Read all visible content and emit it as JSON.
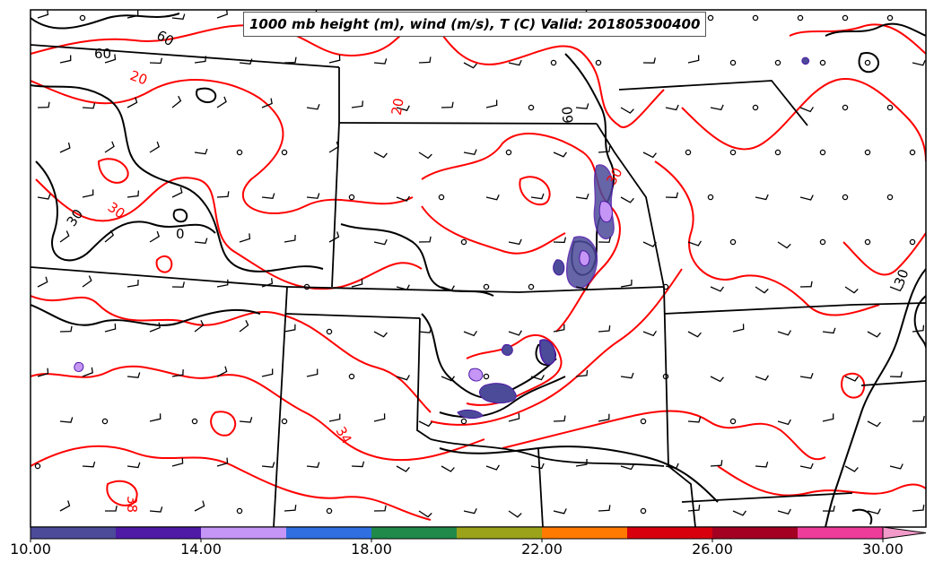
{
  "map": {
    "title": "1000 mb height (m), wind (m/s), T (C) Valid: 201805300400",
    "contour_labels": {
      "temperature": [
        "20",
        "20",
        "30",
        "34",
        "38",
        "30"
      ],
      "height": [
        "60",
        "60",
        "60",
        "30",
        "0",
        "30"
      ]
    }
  },
  "colorbar": {
    "tick_labels": [
      "10.00",
      "14.00",
      "18.00",
      "22.00",
      "26.00",
      "30.00"
    ],
    "bins": [
      {
        "range": "10-12",
        "color": "#4b4b9a"
      },
      {
        "range": "12-14",
        "color": "#4e1aa6"
      },
      {
        "range": "14-16",
        "color": "#c596f5"
      },
      {
        "range": "16-18",
        "color": "#2f6fe2"
      },
      {
        "range": "18-20",
        "color": "#1f8a4a"
      },
      {
        "range": "20-22",
        "color": "#9aa31a"
      },
      {
        "range": "22-24",
        "color": "#ff7a00"
      },
      {
        "range": "24-26",
        "color": "#d8000c"
      },
      {
        "range": "26-28",
        "color": "#a30022"
      },
      {
        "range": "28-30",
        "color": "#ee3c9b"
      },
      {
        "range": ">30",
        "color": "#f29ac9"
      }
    ]
  },
  "colors": {
    "temperature_contour": "#ff0000",
    "height_contour": "#000000",
    "boundary": "#000000",
    "wind_barb": "#000000"
  },
  "legend_icons": [
    "wind-barb-icon",
    "calm-circle-icon"
  ]
}
